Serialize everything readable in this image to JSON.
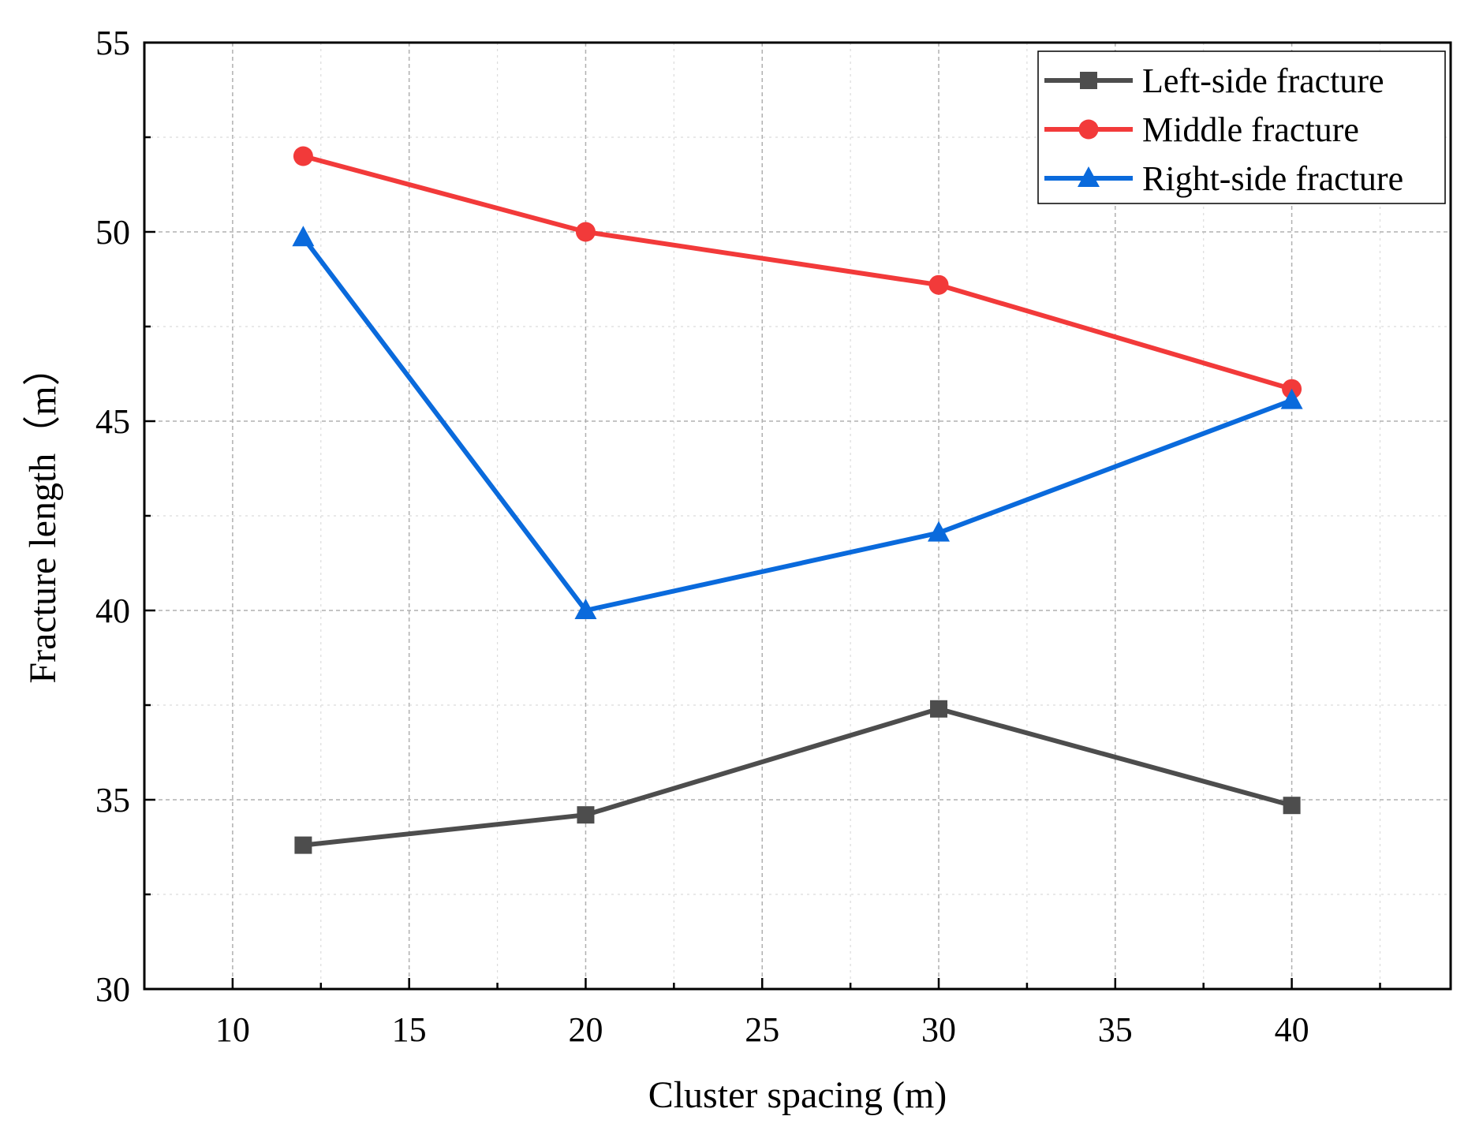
{
  "chart_data": {
    "type": "line",
    "title": "",
    "xlabel": "Cluster spacing (m)",
    "ylabel": "Fracture length（m）",
    "xlim": [
      7.5,
      44.5
    ],
    "ylim": [
      30,
      55
    ],
    "xticks": [
      10,
      15,
      20,
      25,
      30,
      35,
      40
    ],
    "yticks": [
      30,
      35,
      40,
      45,
      50,
      55
    ],
    "xtick_labels": [
      "10",
      "15",
      "20",
      "25",
      "30",
      "35",
      "40"
    ],
    "ytick_labels": [
      "30",
      "35",
      "40",
      "45",
      "50",
      "55"
    ],
    "grid": true,
    "legend_position": "top-right",
    "x": [
      12,
      20,
      30,
      40
    ],
    "series": [
      {
        "name": "Left-side fracture",
        "values": [
          33.8,
          34.6,
          37.4,
          34.85
        ],
        "color": "#4d4d4d",
        "marker": "square"
      },
      {
        "name": "Middle fracture",
        "values": [
          52.0,
          50.0,
          48.6,
          45.85
        ],
        "color": "#f23a3a",
        "marker": "circle"
      },
      {
        "name": "Right-side fracture",
        "values": [
          49.85,
          40.0,
          42.05,
          45.55
        ],
        "color": "#0a6adc",
        "marker": "triangle"
      }
    ]
  }
}
